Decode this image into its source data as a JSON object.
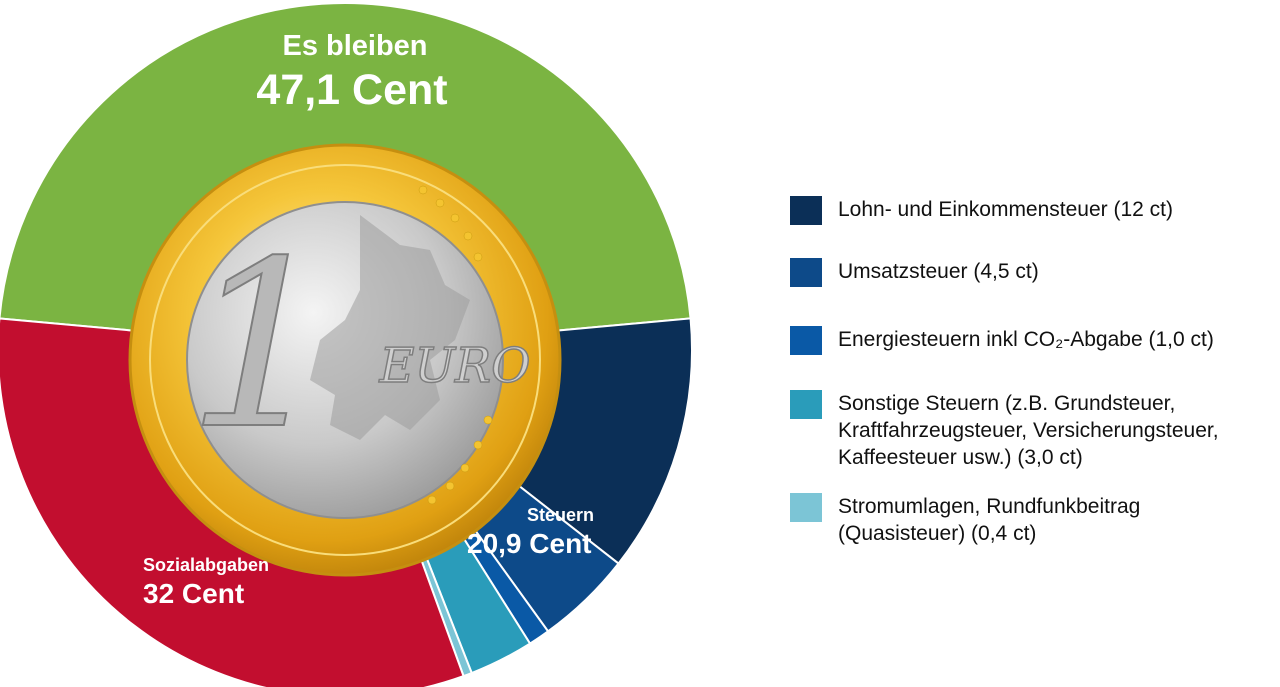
{
  "chart_data": {
    "type": "pie",
    "segments": [
      {
        "title": "Es bleiben",
        "value_label": "47,1 Cent",
        "value": 47.1,
        "color": "#7bb442"
      },
      {
        "title": "Steuern",
        "value_label": "20,9 Cent",
        "value": 20.9,
        "color": "#003366",
        "components": [
          {
            "label": "Lohn- und Einkommensteuer (12 ct)",
            "value": 12,
            "color": "#0b2f57"
          },
          {
            "label": "Umsatzsteuer (4,5 ct)",
            "value": 4.5,
            "color": "#0d4a89"
          },
          {
            "label": "Energiesteuern inkl CO₂-Abgabe (1,0 ct)",
            "value": 1.0,
            "color": "#0a59a6"
          },
          {
            "label": "Sonstige Steuern (z.B. Grundsteuer,\nKraftfahrzeugsteuer, Versicherungsteuer,\nKaffeesteuer usw.) (3,0 ct)",
            "value": 3.0,
            "color": "#2a9cba"
          },
          {
            "label": "Stromumlagen, Rundfunkbeitrag\n(Quasisteuer) (0,4 ct)",
            "value": 0.4,
            "color": "#7cc5d6"
          }
        ]
      },
      {
        "title": "Sozialabgaben",
        "value_label": "32 Cent",
        "value": 32,
        "color": "#c20e2f"
      }
    ],
    "center_image_text": {
      "number": "1",
      "currency": "EURO"
    }
  }
}
